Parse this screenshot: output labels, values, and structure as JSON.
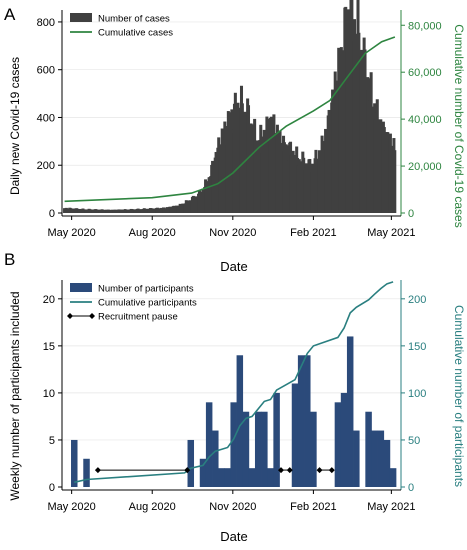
{
  "chart_data": [
    {
      "type": "bar",
      "panel_label": "A",
      "xlabel": "Date",
      "ylabel": "Daily new Covid-19 cases",
      "y2label": "Cumulative number of Covid-19 cases",
      "x_tick_labels": [
        "May 2020",
        "Aug 2020",
        "Nov 2020",
        "Feb 2021",
        "May 2021"
      ],
      "x_tick_dates": [
        "2020-05-01",
        "2020-08-01",
        "2020-11-01",
        "2021-02-01",
        "2021-05-01"
      ],
      "x_range": [
        "2020-04-20",
        "2021-05-12"
      ],
      "ylim": [
        0,
        850
      ],
      "y_ticks": [
        0,
        200,
        400,
        600,
        800
      ],
      "y_tick_labels": [
        "0",
        "200",
        "400",
        "600",
        "800"
      ],
      "y2lim": [
        0,
        86500
      ],
      "y2_ticks": [
        0,
        20000,
        40000,
        60000,
        80000
      ],
      "y2_tick_labels": [
        "0",
        "20,000",
        "40,000",
        "60,000",
        "80,000"
      ],
      "legend_position": "top-left",
      "legend": [
        {
          "name": "Number of cases",
          "mark": "bar"
        },
        {
          "name": "Cumulative cases",
          "mark": "line"
        }
      ],
      "colors": {
        "bars": "#404040",
        "line": "#2e8540",
        "right_axis": "#2e8540"
      },
      "series": [
        {
          "name": "Number of cases",
          "axis": "left",
          "kind": "bar",
          "points": [
            [
              "2020-04-23",
              20
            ],
            [
              "2020-05-15",
              15
            ],
            [
              "2020-06-15",
              12
            ],
            [
              "2020-07-15",
              15
            ],
            [
              "2020-08-15",
              20
            ],
            [
              "2020-09-01",
              30
            ],
            [
              "2020-09-15",
              55
            ],
            [
              "2020-09-25",
              80
            ],
            [
              "2020-10-05",
              140
            ],
            [
              "2020-10-15",
              260
            ],
            [
              "2020-10-25",
              360
            ],
            [
              "2020-11-03",
              420
            ],
            [
              "2020-11-10",
              440
            ],
            [
              "2020-11-18",
              400
            ],
            [
              "2020-11-25",
              330
            ],
            [
              "2020-12-01",
              290
            ],
            [
              "2020-12-08",
              330
            ],
            [
              "2020-12-15",
              380
            ],
            [
              "2020-12-20",
              340
            ],
            [
              "2020-12-28",
              280
            ],
            [
              "2021-01-05",
              260
            ],
            [
              "2021-01-12",
              230
            ],
            [
              "2021-01-20",
              210
            ],
            [
              "2021-01-28",
              190
            ],
            [
              "2021-02-05",
              220
            ],
            [
              "2021-02-12",
              280
            ],
            [
              "2021-02-19",
              380
            ],
            [
              "2021-02-26",
              520
            ],
            [
              "2021-03-05",
              640
            ],
            [
              "2021-03-10",
              760
            ],
            [
              "2021-03-15",
              830
            ],
            [
              "2021-03-20",
              780
            ],
            [
              "2021-03-27",
              680
            ],
            [
              "2021-04-03",
              560
            ],
            [
              "2021-04-10",
              460
            ],
            [
              "2021-04-17",
              370
            ],
            [
              "2021-04-24",
              320
            ],
            [
              "2021-05-01",
              290
            ],
            [
              "2021-05-05",
              260
            ]
          ]
        },
        {
          "name": "Cumulative cases",
          "axis": "right",
          "kind": "line",
          "points": [
            [
              "2020-04-23",
              5000
            ],
            [
              "2020-08-01",
              6500
            ],
            [
              "2020-09-15",
              8500
            ],
            [
              "2020-10-15",
              12500
            ],
            [
              "2020-11-01",
              17000
            ],
            [
              "2020-12-01",
              28000
            ],
            [
              "2021-01-01",
              37000
            ],
            [
              "2021-02-01",
              43500
            ],
            [
              "2021-02-20",
              48000
            ],
            [
              "2021-03-10",
              57000
            ],
            [
              "2021-04-01",
              68000
            ],
            [
              "2021-04-20",
              73000
            ],
            [
              "2021-05-05",
              75000
            ]
          ]
        }
      ]
    },
    {
      "type": "bar",
      "panel_label": "B",
      "xlabel": "Date",
      "ylabel": "Weekly number of participants included",
      "y2label": "Cumulative number of participants",
      "x_tick_labels": [
        "May 2020",
        "Aug 2020",
        "Nov 2020",
        "Feb 2021",
        "May 2021"
      ],
      "x_tick_dates": [
        "2020-05-01",
        "2020-08-01",
        "2020-11-01",
        "2021-02-01",
        "2021-05-01"
      ],
      "x_range": [
        "2020-04-20",
        "2021-05-12"
      ],
      "ylim": [
        0,
        22
      ],
      "y_ticks": [
        0,
        5,
        10,
        15,
        20
      ],
      "y_tick_labels": [
        "0",
        "5",
        "10",
        "15",
        "20"
      ],
      "y2lim": [
        0,
        220
      ],
      "y2_ticks": [
        0,
        50,
        100,
        150,
        200
      ],
      "y2_tick_labels": [
        "0",
        "50",
        "100",
        "150",
        "200"
      ],
      "legend_position": "top-left",
      "legend": [
        {
          "name": "Number of participants",
          "mark": "bar"
        },
        {
          "name": "Cumulative participants",
          "mark": "line"
        },
        {
          "name": "Recruitment pause",
          "mark": "diamond-line"
        }
      ],
      "colors": {
        "bars": "#2b4a7a",
        "line": "#2a7f80",
        "pause": "#000000",
        "right_axis": "#2a7f80"
      },
      "series": [
        {
          "name": "Number of participants",
          "axis": "left",
          "kind": "bar",
          "points": [
            [
              "2020-05-04",
              5
            ],
            [
              "2020-05-18",
              3
            ],
            [
              "2020-09-14",
              5
            ],
            [
              "2020-09-28",
              3
            ],
            [
              "2020-10-05",
              9
            ],
            [
              "2020-10-12",
              6
            ],
            [
              "2020-10-19",
              2
            ],
            [
              "2020-10-26",
              2
            ],
            [
              "2020-11-02",
              9
            ],
            [
              "2020-11-09",
              14
            ],
            [
              "2020-11-16",
              8
            ],
            [
              "2020-11-23",
              2
            ],
            [
              "2020-11-30",
              8
            ],
            [
              "2020-12-07",
              8
            ],
            [
              "2020-12-14",
              2
            ],
            [
              "2020-12-21",
              10
            ],
            [
              "2021-01-11",
              11
            ],
            [
              "2021-01-18",
              14
            ],
            [
              "2021-01-25",
              14
            ],
            [
              "2021-02-01",
              8
            ],
            [
              "2021-03-01",
              9
            ],
            [
              "2021-03-08",
              10
            ],
            [
              "2021-03-15",
              16
            ],
            [
              "2021-03-22",
              6
            ],
            [
              "2021-04-05",
              8
            ],
            [
              "2021-04-12",
              6
            ],
            [
              "2021-04-19",
              6
            ],
            [
              "2021-04-26",
              5
            ],
            [
              "2021-05-03",
              2
            ]
          ]
        },
        {
          "name": "Cumulative participants",
          "axis": "right",
          "kind": "line",
          "points": [
            [
              "2020-05-04",
              5
            ],
            [
              "2020-05-18",
              8
            ],
            [
              "2020-09-07",
              15
            ],
            [
              "2020-09-14",
              20
            ],
            [
              "2020-09-28",
              23
            ],
            [
              "2020-10-05",
              32
            ],
            [
              "2020-10-12",
              38
            ],
            [
              "2020-10-19",
              40
            ],
            [
              "2020-10-26",
              42
            ],
            [
              "2020-11-02",
              51
            ],
            [
              "2020-11-09",
              65
            ],
            [
              "2020-11-16",
              73
            ],
            [
              "2020-11-23",
              75
            ],
            [
              "2020-11-30",
              83
            ],
            [
              "2020-12-07",
              91
            ],
            [
              "2020-12-14",
              93
            ],
            [
              "2020-12-21",
              103
            ],
            [
              "2021-01-11",
              114
            ],
            [
              "2021-01-18",
              128
            ],
            [
              "2021-01-25",
              142
            ],
            [
              "2021-02-01",
              150
            ],
            [
              "2021-03-01",
              159
            ],
            [
              "2021-03-08",
              169
            ],
            [
              "2021-03-15",
              185
            ],
            [
              "2021-03-22",
              191
            ],
            [
              "2021-04-05",
              199
            ],
            [
              "2021-04-12",
              205
            ],
            [
              "2021-04-19",
              211
            ],
            [
              "2021-04-26",
              216
            ],
            [
              "2021-05-03",
              218
            ]
          ]
        },
        {
          "name": "Recruitment pause",
          "axis": "left",
          "kind": "interval",
          "intervals": [
            [
              "2020-05-31",
              "2020-09-10"
            ],
            [
              "2020-12-26",
              "2021-01-05"
            ],
            [
              "2021-02-08",
              "2021-02-22"
            ]
          ],
          "y": 1.8
        }
      ]
    }
  ]
}
